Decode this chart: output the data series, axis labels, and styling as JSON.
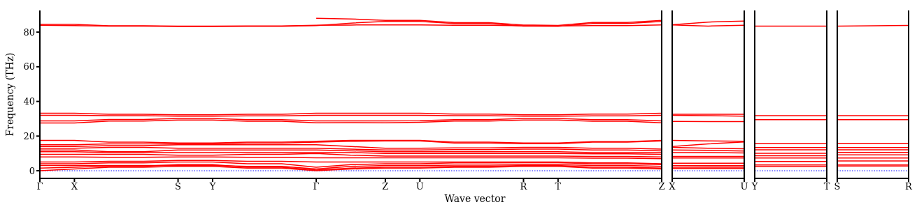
{
  "chart_data": [
    {
      "type": "line",
      "ylabel": "Frequency (THz)",
      "xlabel": "Wave vector",
      "ylim": [
        -4.4,
        92.5
      ],
      "yticks": [
        0,
        20,
        40,
        60,
        80
      ],
      "categories": [
        "Γ",
        "X",
        null,
        null,
        "S",
        "Y",
        null,
        null,
        "Γ",
        null,
        "Z",
        "U",
        null,
        null,
        "R",
        "T",
        null,
        null,
        "Z"
      ],
      "grid": false,
      "legend": false,
      "ref_lines": [
        {
          "axis": "y",
          "value": 0,
          "color": "#0000ff",
          "line_style": "dotted"
        }
      ],
      "series": [
        {
          "color": "#ff0000",
          "values": [
            84.5,
            84.5,
            83.7,
            83.7,
            83.5,
            83.5,
            83.6,
            83.6,
            84,
            84.1,
            84.2,
            84.2,
            84,
            84,
            83.7,
            83.6,
            83.8,
            83.8,
            84.2
          ]
        },
        {
          "color": "#ff0000",
          "values": [
            84,
            83.8,
            83.5,
            83.5,
            83.3,
            83.3,
            83.4,
            83.4,
            83.8,
            85.2,
            86.2,
            86.2,
            85,
            85,
            83.5,
            83.4,
            85,
            85,
            86.2
          ]
        },
        {
          "color": "#ff0000",
          "values": [
            null,
            null,
            null,
            null,
            null,
            null,
            null,
            null,
            88,
            87.6,
            86.8,
            86.8,
            85.5,
            85.5,
            84.1,
            83.9,
            85.6,
            85.6,
            86.8
          ]
        },
        {
          "color": "#ff0000",
          "values": [
            33.2,
            33.2,
            32.6,
            32.6,
            32.3,
            32.3,
            32.6,
            32.6,
            33.2,
            33.2,
            33.2,
            33.2,
            32.7,
            32.7,
            32.3,
            32.3,
            32.7,
            32.7,
            33.2
          ]
        },
        {
          "color": "#ff0000",
          "values": [
            32,
            32,
            31.8,
            31.8,
            31.5,
            31.5,
            31.7,
            31.7,
            32,
            32,
            32,
            32,
            31.8,
            31.8,
            31.5,
            31.5,
            31.7,
            31.7,
            32
          ]
        },
        {
          "color": "#ff0000",
          "values": [
            28.8,
            28.8,
            29.6,
            29.6,
            30.2,
            30.2,
            29.5,
            29.5,
            28.8,
            28.8,
            28.8,
            28.9,
            29.5,
            29.5,
            30.2,
            30.2,
            29.5,
            29.5,
            28.8
          ]
        },
        {
          "color": "#ff0000",
          "values": [
            27.6,
            27.6,
            28.7,
            28.7,
            29.3,
            29.3,
            28.6,
            28.6,
            27.7,
            27.8,
            27.7,
            28,
            28.7,
            28.7,
            29.3,
            29.3,
            28.6,
            28.6,
            27.7
          ]
        },
        {
          "color": "#ff0000",
          "values": [
            17.5,
            17.5,
            16.5,
            16.5,
            16,
            16,
            16.5,
            16.5,
            17,
            17.5,
            17.5,
            17.5,
            16.5,
            16.5,
            16,
            16,
            16.8,
            16.8,
            17.5
          ]
        },
        {
          "color": "#ff0000",
          "values": [
            15,
            15,
            15.5,
            15.5,
            15.5,
            15.5,
            16,
            16,
            16.5,
            17,
            17.2,
            17.2,
            16,
            16,
            15.6,
            15.6,
            16.5,
            16.5,
            17.2
          ]
        },
        {
          "color": "#ff0000",
          "values": [
            14,
            14,
            14.5,
            14.5,
            15,
            15,
            15,
            15,
            15,
            14,
            13,
            13,
            13.2,
            13.2,
            13.5,
            13.5,
            13,
            13,
            12.5
          ]
        },
        {
          "color": "#ff0000",
          "values": [
            13,
            13,
            13.5,
            13.5,
            13,
            13,
            13,
            13,
            13,
            12.5,
            12,
            12,
            12.2,
            12.2,
            12.5,
            12.5,
            12,
            12,
            11.5
          ]
        },
        {
          "color": "#ff0000",
          "values": [
            12,
            12,
            11,
            11,
            12,
            12,
            12,
            12,
            12,
            11.5,
            11,
            11,
            11,
            11,
            11,
            11,
            10.5,
            10.5,
            10.5
          ]
        },
        {
          "color": "#ff0000",
          "values": [
            11,
            11,
            10.5,
            10.5,
            10.5,
            10.5,
            10.5,
            10.5,
            10.5,
            10.5,
            10,
            10,
            10,
            10,
            10,
            10,
            9.8,
            9.8,
            9.5
          ]
        },
        {
          "color": "#ff0000",
          "values": [
            9.5,
            9.5,
            9.5,
            9.5,
            9,
            9,
            9.5,
            9.5,
            10,
            9,
            8.5,
            8.5,
            8.5,
            8.5,
            8.5,
            8.5,
            8.3,
            8.3,
            8
          ]
        },
        {
          "color": "#ff0000",
          "values": [
            8,
            8,
            7.8,
            7.8,
            8,
            8,
            7.8,
            7.8,
            7.5,
            7.5,
            7.5,
            7.5,
            7.5,
            7.5,
            7.5,
            7.5,
            7.3,
            7.3,
            7
          ]
        },
        {
          "color": "#ff0000",
          "values": [
            5,
            5,
            5.5,
            5.5,
            6,
            6,
            5.5,
            5.5,
            5,
            5,
            5,
            5,
            5,
            5,
            5,
            5,
            4.5,
            4.5,
            4
          ]
        },
        {
          "color": "#ff0000",
          "values": [
            4,
            4,
            4.5,
            4.5,
            5,
            5,
            4,
            4,
            2,
            3.5,
            4,
            4,
            4.5,
            4.5,
            4.6,
            4.6,
            4,
            4,
            3.5
          ]
        },
        {
          "color": "#ff0000",
          "values": [
            3,
            3,
            3,
            3,
            3,
            3,
            2.5,
            2.5,
            1,
            2.5,
            3,
            3,
            3.2,
            3.2,
            3.5,
            3.5,
            3,
            3,
            2.5
          ]
        },
        {
          "color": "#ff0000",
          "values": [
            1.5,
            2,
            2.6,
            2.6,
            3.5,
            3.5,
            2,
            2,
            0.4,
            1.5,
            2,
            2,
            2.5,
            2.5,
            3,
            3,
            2,
            2,
            1.5
          ]
        },
        {
          "color": "#ff0000",
          "values": [
            0,
            1,
            2,
            2,
            2.5,
            2.5,
            1.5,
            1.5,
            0,
            1,
            1.5,
            1.5,
            2,
            2,
            2.5,
            2.5,
            1.5,
            1.5,
            1
          ]
        }
      ]
    },
    {
      "type": "line",
      "ylim": [
        -4.4,
        92.5
      ],
      "yticks": [
        0,
        20,
        40,
        60,
        80
      ],
      "tick_labels": "x",
      "categories": [
        "X",
        null,
        "U"
      ],
      "grid": false,
      "legend": false,
      "ref_lines": [
        {
          "axis": "y",
          "value": 0,
          "color": "#0000ff",
          "line_style": "dotted"
        }
      ],
      "series": [
        {
          "color": "#ff0000",
          "values": [
            84.2,
            83.5,
            84
          ]
        },
        {
          "color": "#ff0000",
          "values": [
            84.3,
            85.8,
            86.4
          ]
        },
        {
          "color": "#ff0000",
          "values": [
            32.6,
            32.6,
            32.6
          ]
        },
        {
          "color": "#ff0000",
          "values": [
            32,
            31.8,
            31.5
          ]
        },
        {
          "color": "#ff0000",
          "values": [
            28.5,
            28.4,
            28.4
          ]
        },
        {
          "color": "#ff0000",
          "values": [
            17.5,
            17.2,
            17
          ]
        },
        {
          "color": "#ff0000",
          "values": [
            14,
            15.5,
            16.6
          ]
        },
        {
          "color": "#ff0000",
          "values": [
            13.5,
            13,
            12.7
          ]
        },
        {
          "color": "#ff0000",
          "values": [
            12,
            11.8,
            11.4
          ]
        },
        {
          "color": "#ff0000",
          "values": [
            10.5,
            10.5,
            10.3
          ]
        },
        {
          "color": "#ff0000",
          "values": [
            8.3,
            8.3,
            8.3
          ]
        },
        {
          "color": "#ff0000",
          "values": [
            7.4,
            7.4,
            7.4
          ]
        },
        {
          "color": "#ff0000",
          "values": [
            4.3,
            4.3,
            4.3
          ]
        },
        {
          "color": "#ff0000",
          "values": [
            3,
            2.9,
            2.9
          ]
        },
        {
          "color": "#ff0000",
          "values": [
            2,
            2,
            2
          ]
        },
        {
          "color": "#ff0000",
          "values": [
            1.3,
            1.3,
            1.3
          ]
        }
      ]
    },
    {
      "type": "line",
      "ylim": [
        -4.4,
        92.5
      ],
      "yticks": [
        0,
        20,
        40,
        60,
        80
      ],
      "tick_labels": "x",
      "categories": [
        "Y",
        null,
        "T"
      ],
      "grid": false,
      "legend": false,
      "ref_lines": [
        {
          "axis": "y",
          "value": 0,
          "color": "#0000ff",
          "line_style": "dotted"
        }
      ],
      "series": [
        {
          "color": "#ff0000",
          "values": [
            83.5,
            83.5,
            83.5
          ]
        },
        {
          "color": "#ff0000",
          "values": [
            31.8,
            31.8,
            31.8
          ]
        },
        {
          "color": "#ff0000",
          "values": [
            29.5,
            29.5,
            29.5
          ]
        },
        {
          "color": "#ff0000",
          "values": [
            15.7,
            15.7,
            15.7
          ]
        },
        {
          "color": "#ff0000",
          "values": [
            13.4,
            13.4,
            13.4
          ]
        },
        {
          "color": "#ff0000",
          "values": [
            12.1,
            12.1,
            12.1
          ]
        },
        {
          "color": "#ff0000",
          "values": [
            10.1,
            10.1,
            10.1
          ]
        },
        {
          "color": "#ff0000",
          "values": [
            8.7,
            8.7,
            8.7
          ]
        },
        {
          "color": "#ff0000",
          "values": [
            7.4,
            7.4,
            7.4
          ]
        },
        {
          "color": "#ff0000",
          "values": [
            5.4,
            5.4,
            5.4
          ]
        },
        {
          "color": "#ff0000",
          "values": [
            3.3,
            3.3,
            3.3
          ]
        },
        {
          "color": "#ff0000",
          "values": [
            2.4,
            2.4,
            2.4
          ]
        }
      ]
    },
    {
      "type": "line",
      "ylim": [
        -4.4,
        92.5
      ],
      "yticks": [
        0,
        20,
        40,
        60,
        80
      ],
      "tick_labels": "x",
      "categories": [
        "S",
        null,
        "R"
      ],
      "grid": false,
      "legend": false,
      "ref_lines": [
        {
          "axis": "y",
          "value": 0,
          "color": "#0000ff",
          "line_style": "dotted"
        }
      ],
      "series": [
        {
          "color": "#ff0000",
          "values": [
            83.5,
            83.7,
            83.9
          ]
        },
        {
          "color": "#ff0000",
          "values": [
            31.8,
            31.8,
            31.8
          ]
        },
        {
          "color": "#ff0000",
          "values": [
            29.5,
            29.5,
            29.5
          ]
        },
        {
          "color": "#ff0000",
          "values": [
            15.8,
            15.8,
            15.8
          ]
        },
        {
          "color": "#ff0000",
          "values": [
            13.4,
            13.4,
            13.4
          ]
        },
        {
          "color": "#ff0000",
          "values": [
            12.1,
            12.1,
            12.1
          ]
        },
        {
          "color": "#ff0000",
          "values": [
            10.6,
            10.6,
            10.6
          ]
        },
        {
          "color": "#ff0000",
          "values": [
            9.2,
            9.2,
            9.2
          ]
        },
        {
          "color": "#ff0000",
          "values": [
            7.4,
            7.4,
            7.4
          ]
        },
        {
          "color": "#ff0000",
          "values": [
            5.7,
            5.7,
            5.7
          ]
        },
        {
          "color": "#ff0000",
          "values": [
            3.3,
            3.3,
            3.3
          ]
        },
        {
          "color": "#ff0000",
          "values": [
            2.7,
            2.7,
            2.7
          ]
        }
      ]
    }
  ]
}
